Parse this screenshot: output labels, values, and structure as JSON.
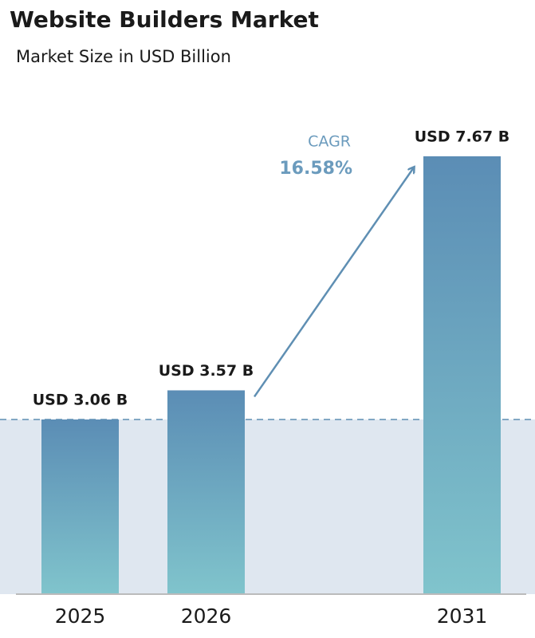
{
  "chart_data": {
    "type": "bar",
    "title": "Website Builders Market",
    "subtitle": "Market Size in USD Billion",
    "categories": [
      "2025",
      "2026",
      "2031"
    ],
    "values": [
      3.06,
      3.57,
      7.67
    ],
    "value_labels": [
      "USD 3.06 B",
      "USD 3.57 B",
      "USD 7.67 B"
    ],
    "color": "#5b8db5",
    "annotations": [
      "CAGR",
      "16.58%"
    ]
  }
}
